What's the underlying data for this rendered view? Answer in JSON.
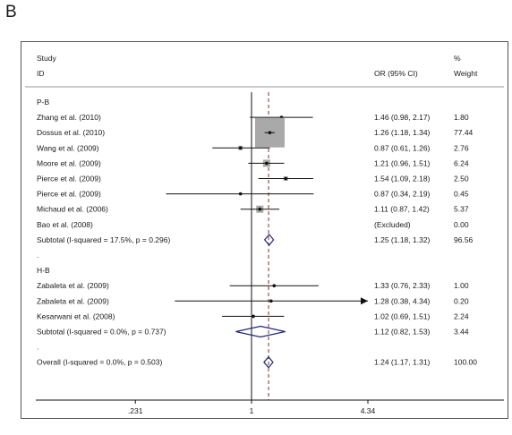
{
  "panel_label": "B",
  "chart_data": {
    "type": "forest",
    "header": {
      "study": "Study",
      "id": "ID",
      "or": "OR (95% CI)",
      "pct": "%",
      "weight": "Weight"
    },
    "axis": {
      "scale": "log",
      "ticks": [
        {
          "value": 0.231,
          "label": ".231"
        },
        {
          "value": 1,
          "label": "1"
        },
        {
          "value": 4.34,
          "label": "4.34"
        }
      ],
      "null_value": 1,
      "overall_value": 1.24
    },
    "rows": [
      {
        "kind": "group",
        "label": "P-B"
      },
      {
        "kind": "study",
        "label": "Zhang et al. (2010)",
        "or": 1.46,
        "lo": 0.98,
        "hi": 2.17,
        "or_text": "1.46 (0.98, 2.17)",
        "weight": "1.80",
        "box": 2
      },
      {
        "kind": "study",
        "label": "Dossus et al. (2010)",
        "or": 1.26,
        "lo": 1.18,
        "hi": 1.34,
        "or_text": "1.26 (1.18, 1.34)",
        "weight": "77.44",
        "box": 33
      },
      {
        "kind": "study",
        "label": "Wang et al. (2009)",
        "or": 0.87,
        "lo": 0.61,
        "hi": 1.26,
        "or_text": "0.87 (0.61, 1.26)",
        "weight": "2.76",
        "box": 5
      },
      {
        "kind": "study",
        "label": "Moore et al. (2009)",
        "or": 1.21,
        "lo": 0.96,
        "hi": 1.51,
        "or_text": "1.21 (0.96, 1.51)",
        "weight": "6.24",
        "box": 8
      },
      {
        "kind": "study",
        "label": "Pierce et al. (2009)",
        "or": 1.54,
        "lo": 1.09,
        "hi": 2.18,
        "or_text": "1.54 (1.09, 2.18)",
        "weight": "2.50",
        "box": 5
      },
      {
        "kind": "study",
        "label": "Pierce et al. (2009)",
        "or": 0.87,
        "lo": 0.34,
        "hi": 2.19,
        "or_text": "0.87 (0.34, 2.19)",
        "weight": "0.45",
        "box": 2
      },
      {
        "kind": "study",
        "label": "Michaud et al. (2006)",
        "or": 1.11,
        "lo": 0.87,
        "hi": 1.42,
        "or_text": "1.11 (0.87, 1.42)",
        "weight": "5.37",
        "box": 8
      },
      {
        "kind": "excluded",
        "label": "Bao et al. (2008)",
        "or_text": "(Excluded)",
        "weight": "0.00"
      },
      {
        "kind": "subtotal",
        "label": "Subtotal  (I-squared = 17.5%, p = 0.296)",
        "or": 1.25,
        "lo": 1.18,
        "hi": 1.32,
        "or_text": "1.25 (1.18, 1.32)",
        "weight": "96.56"
      },
      {
        "kind": "spacer",
        "label": "."
      },
      {
        "kind": "group",
        "label": "H-B"
      },
      {
        "kind": "study",
        "label": "Zabaleta et al. (2009)",
        "or": 1.33,
        "lo": 0.76,
        "hi": 2.33,
        "or_text": "1.33 (0.76, 2.33)",
        "weight": "1.00",
        "box": 2
      },
      {
        "kind": "study",
        "label": "Zabaleta et al. (2009)",
        "or": 1.28,
        "lo": 0.38,
        "hi": 4.34,
        "or_text": "1.28 (0.38, 4.34)",
        "weight": "0.20",
        "box": 2,
        "arrow_right": true
      },
      {
        "kind": "study",
        "label": "Kesarwani et al. (2008)",
        "or": 1.02,
        "lo": 0.69,
        "hi": 1.51,
        "or_text": "1.02 (0.69, 1.51)",
        "weight": "2.24",
        "box": 4
      },
      {
        "kind": "subtotal",
        "label": "Subtotal  (I-squared = 0.0%, p = 0.737)",
        "or": 1.12,
        "lo": 0.82,
        "hi": 1.53,
        "or_text": "1.12 (0.82, 1.53)",
        "weight": "3.44"
      },
      {
        "kind": "spacer",
        "label": "."
      },
      {
        "kind": "subtotal",
        "label": "Overall  (I-squared = 0.0%, p = 0.503)",
        "or": 1.24,
        "lo": 1.17,
        "hi": 1.31,
        "or_text": "1.24 (1.17, 1.31)",
        "weight": "100.00"
      }
    ]
  }
}
